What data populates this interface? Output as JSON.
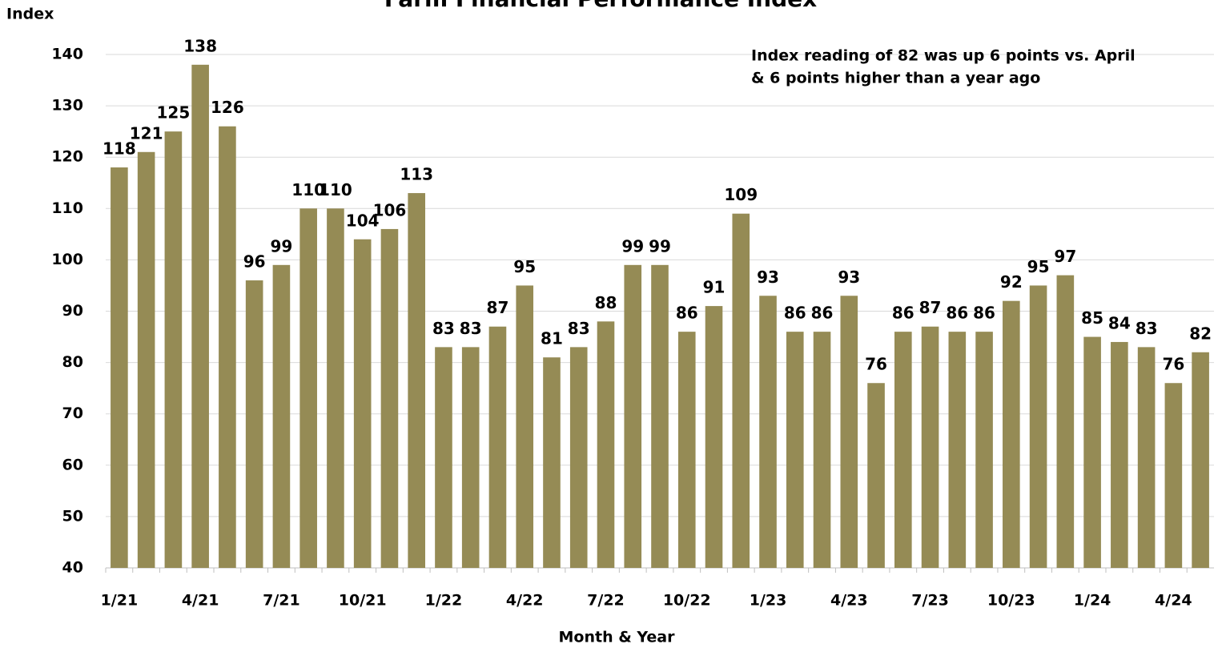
{
  "chart_data": {
    "type": "bar",
    "title": "Farm Financial Performance Index",
    "y_label": "Index",
    "x_label": "Month & Year",
    "annotation": [
      "Index reading of 82 was up 6 points vs. April",
      "& 6 points higher than a year ago"
    ],
    "categories": [
      "1/21",
      null,
      null,
      "4/21",
      null,
      null,
      "7/21",
      null,
      null,
      "10/21",
      null,
      null,
      "1/22",
      null,
      null,
      "4/22",
      null,
      null,
      "7/22",
      null,
      null,
      "10/22",
      null,
      null,
      "1/23",
      null,
      null,
      "4/23",
      null,
      null,
      "7/23",
      null,
      null,
      "10/23",
      null,
      null,
      "1/24",
      null,
      null,
      "4/24",
      null
    ],
    "values": [
      118,
      121,
      125,
      138,
      126,
      96,
      99,
      110,
      110,
      104,
      106,
      113,
      83,
      83,
      87,
      95,
      81,
      83,
      88,
      99,
      99,
      86,
      91,
      109,
      93,
      86,
      86,
      93,
      76,
      86,
      87,
      86,
      86,
      92,
      95,
      97,
      85,
      84,
      83,
      76,
      82
    ],
    "color": "#958b55",
    "ylim": [
      40,
      140
    ],
    "yticks": [
      40,
      50,
      60,
      70,
      80,
      90,
      100,
      110,
      120,
      130,
      140
    ],
    "grid": true
  }
}
